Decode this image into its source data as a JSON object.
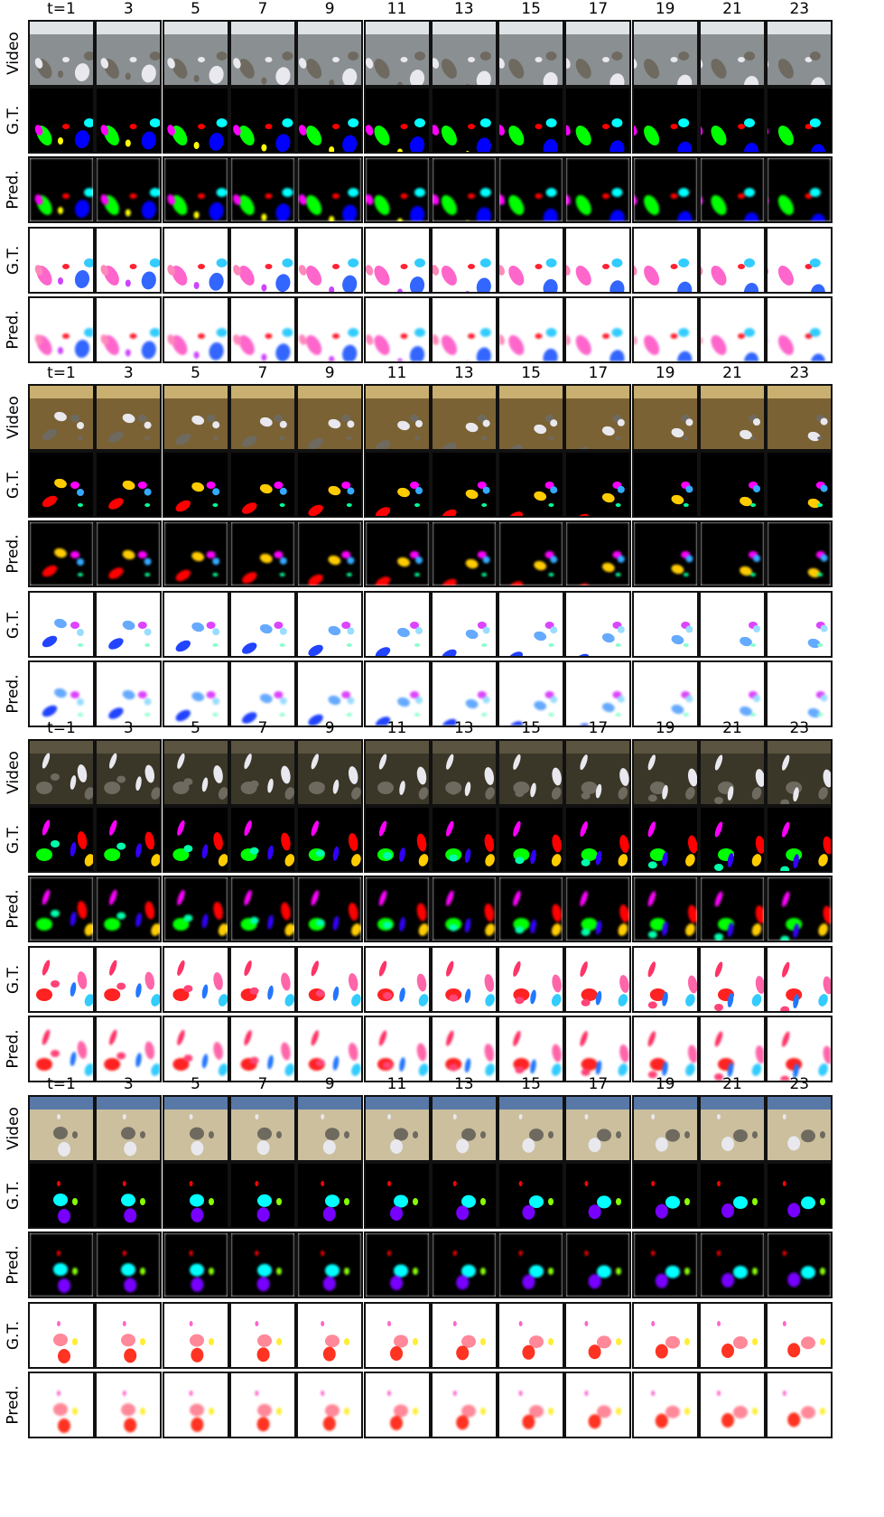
{
  "time_headers": [
    "t=1",
    "3",
    "5",
    "7",
    "9",
    "11",
    "13",
    "15",
    "17",
    "19",
    "21",
    "23"
  ],
  "row_labels": [
    "Video",
    "G.T.",
    "Pred.",
    "G.T.",
    "Pred."
  ],
  "row_kinds": [
    "video",
    "mask",
    "mask",
    "flow",
    "flow"
  ],
  "colors": {
    "mask_background": "#000000",
    "flow_background": "#ffffff",
    "sequence_backgrounds": [
      "#8a8f92",
      "#7a6234",
      "#3a3628",
      "#cbbf9d"
    ],
    "sequence_skies": [
      "#dfe3e6",
      "#c9b070",
      "#5a5440",
      "#5878a8"
    ]
  },
  "sequences": [
    {
      "objects": [
        {
          "mask_color": "#00ff00",
          "flow_color": "#ff66cc"
        },
        {
          "mask_color": "#ff0000",
          "flow_color": "#ff2233"
        },
        {
          "mask_color": "#ffff00",
          "flow_color": "#cc44ff"
        },
        {
          "mask_color": "#0000ff",
          "flow_color": "#3366ff"
        },
        {
          "mask_color": "#00ffff",
          "flow_color": "#33ccff"
        },
        {
          "mask_color": "#ff00ff",
          "flow_color": "#ff88bb"
        }
      ]
    },
    {
      "objects": [
        {
          "mask_color": "#ff0000",
          "flow_color": "#2244ff"
        },
        {
          "mask_color": "#ffcc00",
          "flow_color": "#66aaff"
        },
        {
          "mask_color": "#ff00ff",
          "flow_color": "#dd44ff"
        },
        {
          "mask_color": "#33aaff",
          "flow_color": "#99ddff"
        },
        {
          "mask_color": "#00ff99",
          "flow_color": "#88ffcc"
        }
      ]
    },
    {
      "objects": [
        {
          "mask_color": "#00ff00",
          "flow_color": "#ff2222"
        },
        {
          "mask_color": "#ff00ff",
          "flow_color": "#ff3366"
        },
        {
          "mask_color": "#00ffaa",
          "flow_color": "#ff4477"
        },
        {
          "mask_color": "#ff0000",
          "flow_color": "#ff66aa"
        },
        {
          "mask_color": "#ffcc00",
          "flow_color": "#33ccff"
        },
        {
          "mask_color": "#3300ff",
          "flow_color": "#2277ff"
        }
      ]
    },
    {
      "objects": [
        {
          "mask_color": "#00ffff",
          "flow_color": "#ff8899"
        },
        {
          "mask_color": "#7700ff",
          "flow_color": "#ff3322"
        },
        {
          "mask_color": "#88ff00",
          "flow_color": "#ffee33"
        },
        {
          "mask_color": "#ff0000",
          "flow_color": "#ff66cc"
        }
      ]
    }
  ]
}
